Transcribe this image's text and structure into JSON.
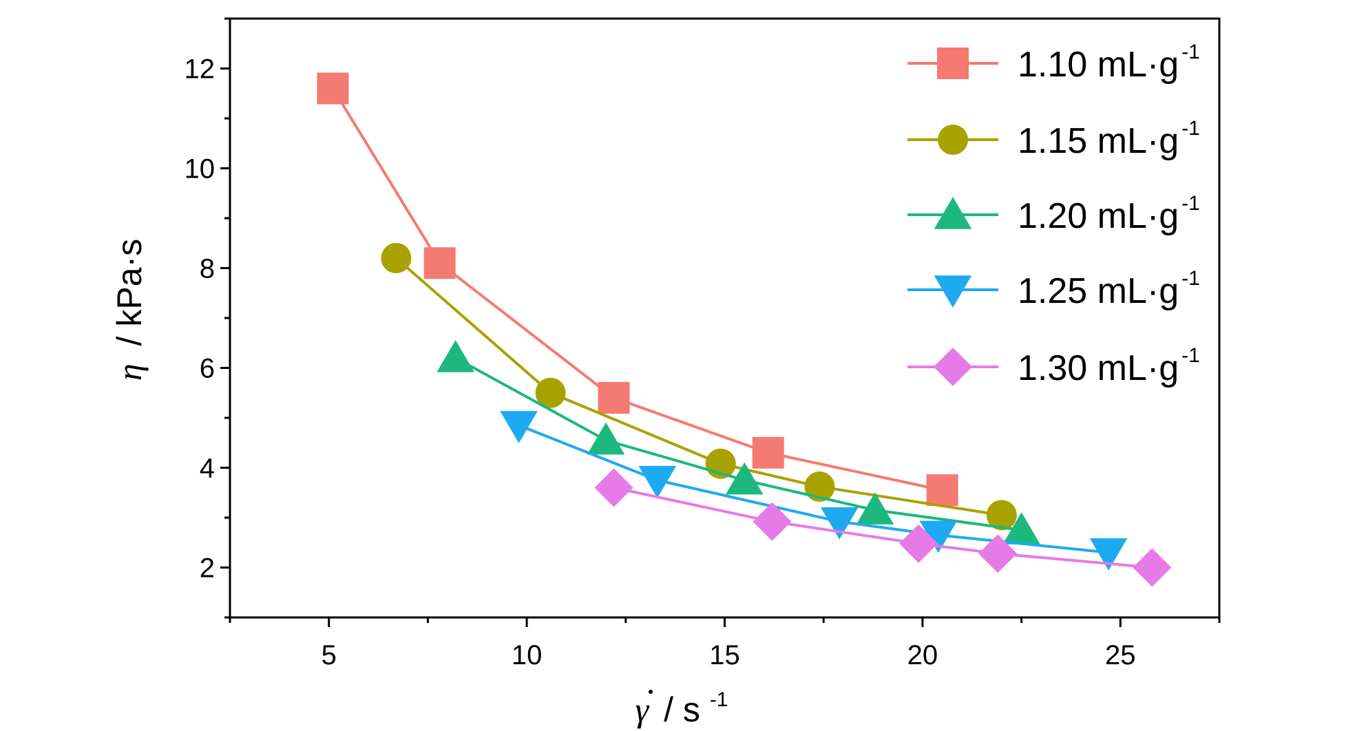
{
  "chart_data": {
    "type": "line",
    "xlim": [
      2.5,
      27.5
    ],
    "ylim": [
      1,
      13
    ],
    "x_ticks": [
      5,
      10,
      15,
      20,
      25
    ],
    "y_ticks": [
      2,
      4,
      6,
      8,
      10,
      12
    ],
    "x_tick_labels": [
      "5",
      "10",
      "15",
      "20",
      "25"
    ],
    "y_tick_labels": [
      "2",
      "4",
      "6",
      "8",
      "10",
      "12"
    ],
    "xlabel": {
      "symbol": "γ",
      "mid": "/ s",
      "sup": "-1"
    },
    "ylabel": {
      "symbol": "η",
      "rest": "/ kPa·s"
    },
    "legend_position": "top-right",
    "grid": false,
    "series": [
      {
        "name": "1.10 mL·g",
        "name_sup": "-1",
        "color": "#F57A72",
        "marker": "square",
        "x": [
          5.1,
          7.8,
          12.2,
          16.1,
          20.5
        ],
        "y": [
          11.6,
          8.1,
          5.4,
          4.3,
          3.55
        ]
      },
      {
        "name": "1.15 mL·g",
        "name_sup": "-1",
        "color": "#A8A200",
        "marker": "circle",
        "x": [
          6.7,
          10.6,
          14.9,
          17.4,
          22.0
        ],
        "y": [
          8.2,
          5.5,
          4.08,
          3.62,
          3.05
        ]
      },
      {
        "name": "1.20 mL·g",
        "name_sup": "-1",
        "color": "#1DB87D",
        "marker": "triangle-up",
        "x": [
          8.2,
          12.0,
          15.5,
          18.8,
          22.5
        ],
        "y": [
          6.2,
          4.55,
          3.75,
          3.15,
          2.75
        ]
      },
      {
        "name": "1.25 mL·g",
        "name_sup": "-1",
        "color": "#1EAAF0",
        "marker": "triangle-down",
        "x": [
          9.8,
          13.3,
          17.9,
          20.4,
          24.7
        ],
        "y": [
          4.85,
          3.75,
          2.92,
          2.65,
          2.3
        ]
      },
      {
        "name": "1.30 mL·g",
        "name_sup": "-1",
        "color": "#E67AE6",
        "marker": "diamond",
        "x": [
          12.2,
          16.2,
          19.9,
          21.9,
          25.8
        ],
        "y": [
          3.6,
          2.92,
          2.48,
          2.28,
          2.0
        ]
      }
    ]
  }
}
